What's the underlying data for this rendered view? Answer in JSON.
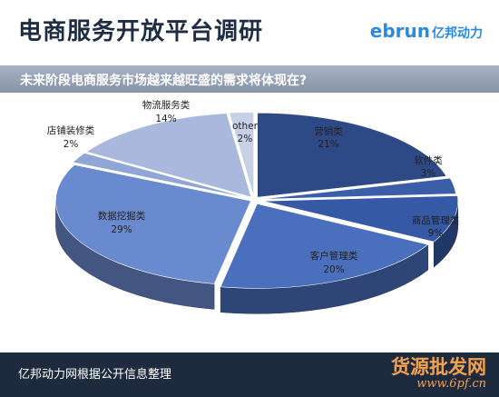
{
  "header": {
    "title": "电商服务开放平台调研",
    "logo_latin": "ebrun",
    "logo_cn": "亿邦动力"
  },
  "subtitle": "未来阶段电商服务市场越来越旺盛的需求将体现在?",
  "footer": {
    "source": "亿邦动力网根据公开信息整理",
    "watermark_cn": "货源批发网",
    "watermark_url": "www.6pf.cn"
  },
  "colors": {
    "header_bg": "#ffffff",
    "bar_bg": "#8693a7",
    "footer_bg": "#1e2b3e",
    "accent": "#2a8ae0",
    "watermark": "#f2a24c"
  },
  "chart_data": {
    "type": "pie",
    "style": "3d-exploded",
    "slices": [
      {
        "name": "营销类",
        "value": 21,
        "label": "21%",
        "color": "#2e4a86"
      },
      {
        "name": "软件类",
        "value": 3,
        "label": "3%",
        "color": "#3b5ea8"
      },
      {
        "name": "商品管理类",
        "value": 9,
        "label": "9%",
        "color": "#3559a4"
      },
      {
        "name": "客户管理类",
        "value": 20,
        "label": "20%",
        "color": "#4a70bd"
      },
      {
        "name": "数据挖掘类",
        "value": 29,
        "label": "29%",
        "color": "#6a8ad0"
      },
      {
        "name": "店铺装修类",
        "value": 2,
        "label": "2%",
        "color": "#8fa6d6"
      },
      {
        "name": "物流服务类",
        "value": 14,
        "label": "14%",
        "color": "#a9b8dc"
      },
      {
        "name": "other",
        "value": 2,
        "label": "2%",
        "color": "#c6d0e6"
      }
    ]
  }
}
